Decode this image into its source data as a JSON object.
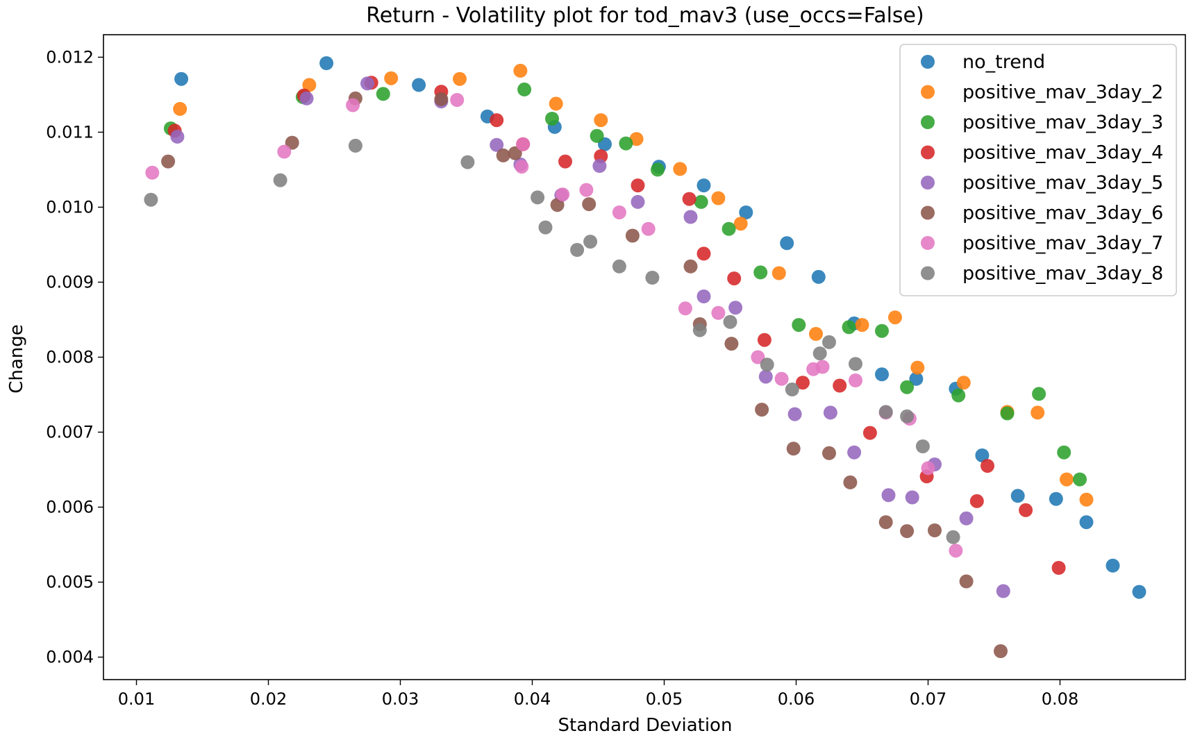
{
  "chart_data": {
    "type": "scatter",
    "title": "Return - Volatility plot for tod_mav3 (use_occs=False)",
    "xlabel": "Standard Deviation",
    "ylabel": "Change",
    "xlim": [
      0.0075,
      0.0895
    ],
    "ylim": [
      0.0037,
      0.0123
    ],
    "xticks": [
      0.01,
      0.02,
      0.03,
      0.04,
      0.05,
      0.06,
      0.07,
      0.08
    ],
    "xtick_labels": [
      "0.01",
      "0.02",
      "0.03",
      "0.04",
      "0.05",
      "0.06",
      "0.07",
      "0.08"
    ],
    "yticks": [
      0.004,
      0.005,
      0.006,
      0.007,
      0.008,
      0.009,
      0.01,
      0.011,
      0.012
    ],
    "ytick_labels": [
      "0.004",
      "0.005",
      "0.006",
      "0.007",
      "0.008",
      "0.009",
      "0.010",
      "0.011",
      "0.012"
    ],
    "grid": false,
    "legend_position": "top-right",
    "series": [
      {
        "name": "no_trend",
        "color": "#1f77b4",
        "x": [
          0.0134,
          0.0244,
          0.0314,
          0.0366,
          0.0417,
          0.0455,
          0.0496,
          0.053,
          0.0562,
          0.0593,
          0.0617,
          0.0644,
          0.0665,
          0.0691,
          0.0721,
          0.0741,
          0.0768,
          0.0797,
          0.082,
          0.084,
          0.086
        ],
        "y": [
          0.01171,
          0.01192,
          0.01163,
          0.01121,
          0.01107,
          0.01084,
          0.01054,
          0.01029,
          0.00993,
          0.00952,
          0.00907,
          0.00845,
          0.00777,
          0.00771,
          0.00758,
          0.00669,
          0.00615,
          0.00611,
          0.0058,
          0.00522,
          0.00487
        ]
      },
      {
        "name": "positive_mav_3day_2",
        "color": "#ff7f0e",
        "x": [
          0.0133,
          0.0231,
          0.0293,
          0.0345,
          0.0391,
          0.0418,
          0.0452,
          0.0479,
          0.0512,
          0.0541,
          0.0558,
          0.0587,
          0.0615,
          0.065,
          0.0675,
          0.0692,
          0.0727,
          0.076,
          0.0783,
          0.0805,
          0.082
        ],
        "y": [
          0.01131,
          0.01163,
          0.01172,
          0.01171,
          0.01182,
          0.01138,
          0.01116,
          0.01091,
          0.01051,
          0.01012,
          0.00978,
          0.00912,
          0.00831,
          0.00843,
          0.00853,
          0.00786,
          0.00766,
          0.00727,
          0.00726,
          0.00637,
          0.0061
        ]
      },
      {
        "name": "positive_mav_3day_3",
        "color": "#2ca02c",
        "x": [
          0.0126,
          0.0226,
          0.0287,
          0.0394,
          0.0415,
          0.0449,
          0.0471,
          0.0495,
          0.0528,
          0.0549,
          0.0573,
          0.0602,
          0.064,
          0.0665,
          0.0684,
          0.0723,
          0.076,
          0.0784,
          0.0803,
          0.0815
        ],
        "y": [
          0.01105,
          0.01147,
          0.01151,
          0.01157,
          0.01118,
          0.01095,
          0.01085,
          0.0105,
          0.01007,
          0.00971,
          0.00913,
          0.00843,
          0.0084,
          0.00835,
          0.0076,
          0.00749,
          0.00725,
          0.00751,
          0.00673,
          0.00637
        ]
      },
      {
        "name": "positive_mav_3day_4",
        "color": "#d62728",
        "x": [
          0.0129,
          0.0227,
          0.0278,
          0.0331,
          0.0373,
          0.0393,
          0.0425,
          0.0452,
          0.048,
          0.0519,
          0.053,
          0.0553,
          0.0576,
          0.0605,
          0.0633,
          0.0656,
          0.0699,
          0.0737,
          0.0745,
          0.0774,
          0.0799
        ],
        "y": [
          0.01102,
          0.01149,
          0.01166,
          0.01154,
          0.01116,
          0.01084,
          0.01061,
          0.01068,
          0.01029,
          0.01011,
          0.00938,
          0.00905,
          0.00823,
          0.00766,
          0.00762,
          0.00699,
          0.00641,
          0.00608,
          0.00655,
          0.00596,
          0.00519
        ]
      },
      {
        "name": "positive_mav_3day_5",
        "color": "#9467bd",
        "x": [
          0.0131,
          0.0229,
          0.0275,
          0.0331,
          0.0373,
          0.0391,
          0.0422,
          0.0451,
          0.048,
          0.052,
          0.053,
          0.0554,
          0.0577,
          0.0599,
          0.0626,
          0.0644,
          0.067,
          0.0688,
          0.0705,
          0.0729,
          0.0757
        ],
        "y": [
          0.01094,
          0.01145,
          0.01165,
          0.01141,
          0.01083,
          0.01057,
          0.01016,
          0.01055,
          0.01007,
          0.00987,
          0.00881,
          0.00866,
          0.00774,
          0.00724,
          0.00726,
          0.00673,
          0.00616,
          0.00613,
          0.00657,
          0.00585,
          0.00488
        ]
      },
      {
        "name": "positive_mav_3day_6",
        "color": "#8c564b",
        "x": [
          0.0124,
          0.0218,
          0.0266,
          0.0331,
          0.0378,
          0.0387,
          0.0419,
          0.0443,
          0.0476,
          0.052,
          0.0527,
          0.0551,
          0.0574,
          0.0598,
          0.0625,
          0.0641,
          0.0668,
          0.0684,
          0.0705,
          0.0729,
          0.0755
        ],
        "y": [
          0.01061,
          0.01086,
          0.01145,
          0.01144,
          0.01069,
          0.01072,
          0.01003,
          0.01004,
          0.00962,
          0.00921,
          0.00844,
          0.00818,
          0.0073,
          0.00678,
          0.00672,
          0.00633,
          0.0058,
          0.00568,
          0.00569,
          0.00501,
          0.00408
        ]
      },
      {
        "name": "positive_mav_3day_7",
        "color": "#e377c2",
        "x": [
          0.0112,
          0.0212,
          0.0264,
          0.0343,
          0.0392,
          0.0393,
          0.0423,
          0.0441,
          0.0466,
          0.0488,
          0.0516,
          0.0541,
          0.0571,
          0.0589,
          0.0613,
          0.062,
          0.0645,
          0.0668,
          0.0686,
          0.07,
          0.0721
        ],
        "y": [
          0.01046,
          0.01074,
          0.01136,
          0.01143,
          0.01054,
          0.01084,
          0.01017,
          0.01023,
          0.00993,
          0.00971,
          0.00865,
          0.00859,
          0.008,
          0.00771,
          0.00784,
          0.00787,
          0.00769,
          0.00726,
          0.00718,
          0.00652,
          0.00542
        ]
      },
      {
        "name": "positive_mav_3day_8",
        "color": "#7f7f7f",
        "x": [
          0.0111,
          0.0209,
          0.0266,
          0.0351,
          0.0404,
          0.041,
          0.0434,
          0.0444,
          0.0466,
          0.0491,
          0.0527,
          0.055,
          0.0578,
          0.0597,
          0.0618,
          0.0625,
          0.0645,
          0.0668,
          0.0684,
          0.0696,
          0.0719
        ],
        "y": [
          0.0101,
          0.01036,
          0.01082,
          0.0106,
          0.01013,
          0.00973,
          0.00943,
          0.00954,
          0.00921,
          0.00906,
          0.00836,
          0.00847,
          0.0079,
          0.00757,
          0.00805,
          0.0082,
          0.00791,
          0.00727,
          0.00721,
          0.00681,
          0.0056
        ]
      }
    ]
  }
}
